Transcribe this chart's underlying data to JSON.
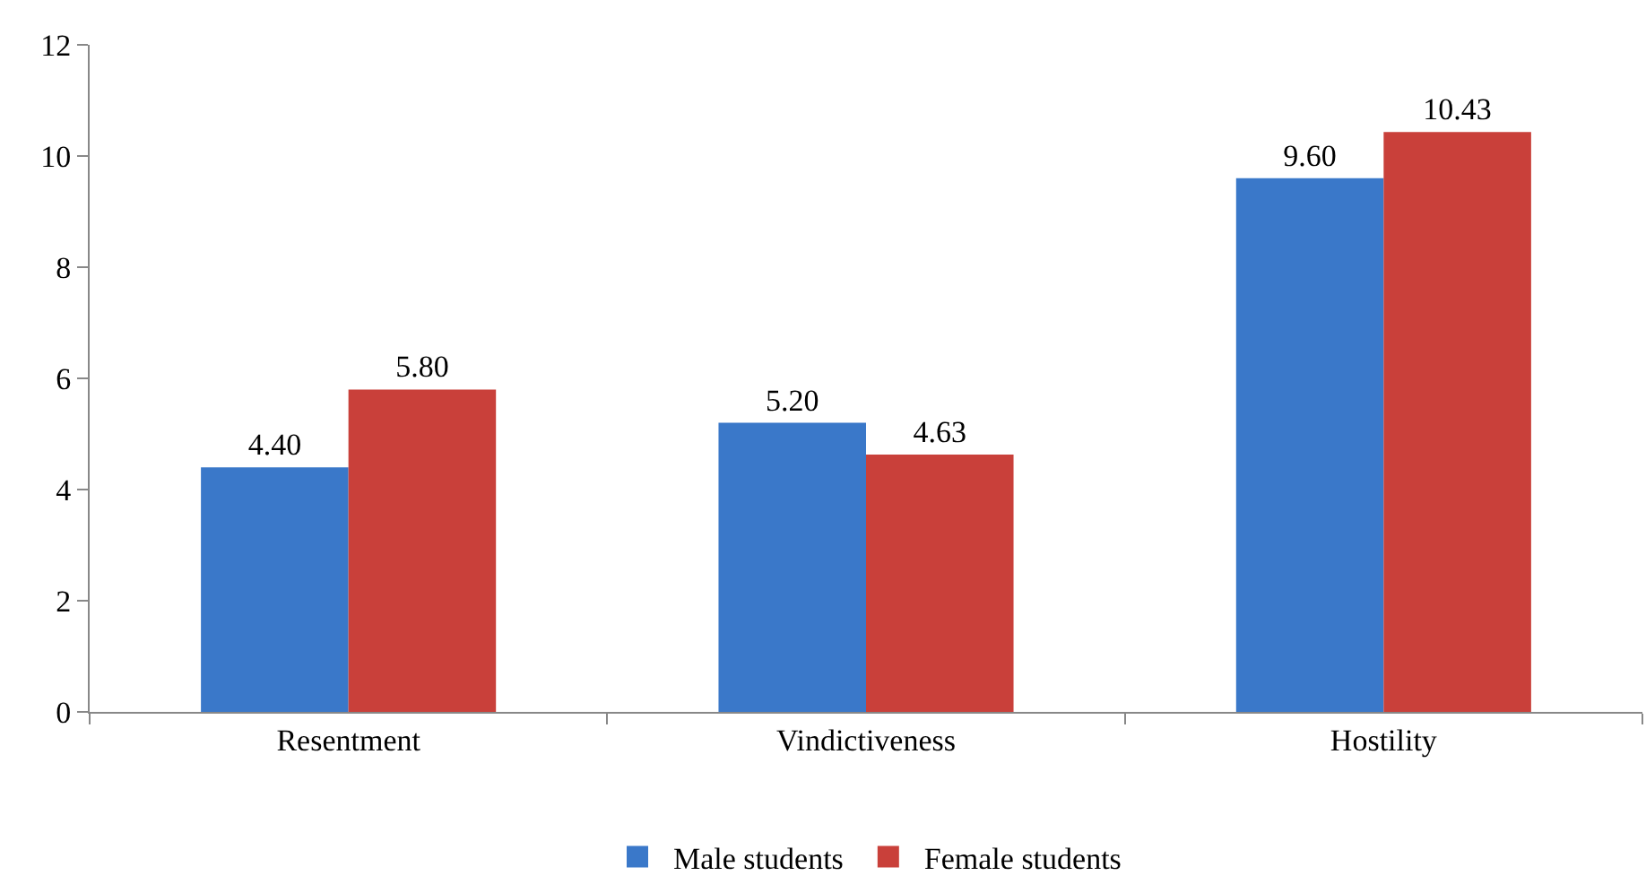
{
  "chart_data": {
    "type": "bar",
    "categories": [
      "Resentment",
      "Vindictiveness",
      "Hostility"
    ],
    "series": [
      {
        "name": "Male students",
        "color": "#3a78c9",
        "values": [
          4.4,
          5.2,
          9.6
        ],
        "value_labels": [
          "4.40",
          "5.20",
          "9.60"
        ]
      },
      {
        "name": "Female students",
        "color": "#c9403a",
        "values": [
          5.8,
          4.63,
          10.43
        ],
        "value_labels": [
          "5.80",
          "4.63",
          "10.43"
        ]
      }
    ],
    "ylim": [
      0,
      12
    ],
    "yticks": [
      0,
      2,
      4,
      6,
      8,
      10,
      12
    ],
    "legend": "bottom"
  }
}
